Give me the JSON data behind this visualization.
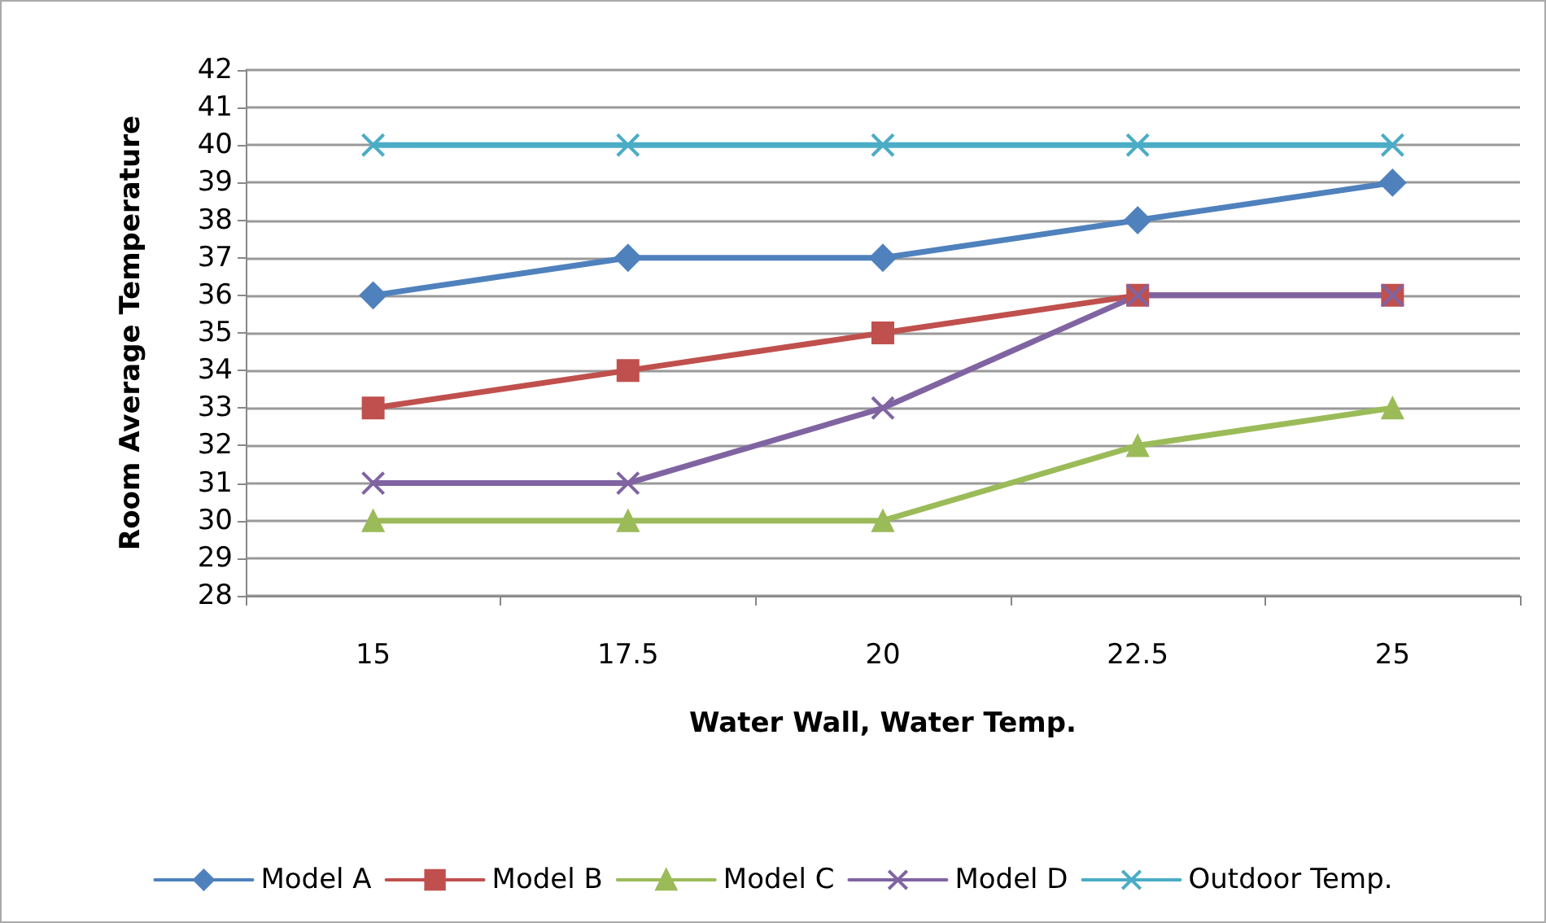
{
  "chart_data": {
    "type": "line",
    "xlabel": "Water Wall, Water Temp.",
    "ylabel": "Room Average Temperature",
    "categories": [
      "15",
      "17.5",
      "20",
      "22.5",
      "25"
    ],
    "series": [
      {
        "name": "Model A",
        "color": "#4f81bd",
        "marker": "diamond",
        "values": [
          36,
          37,
          37,
          38,
          39
        ]
      },
      {
        "name": "Model B",
        "color": "#c0504d",
        "marker": "square",
        "values": [
          33,
          34,
          35,
          36,
          36
        ]
      },
      {
        "name": "Model C",
        "color": "#9bbb59",
        "marker": "triangle",
        "values": [
          30,
          30,
          30,
          32,
          33
        ]
      },
      {
        "name": "Model D",
        "color": "#8064a2",
        "marker": "cross",
        "values": [
          31,
          31,
          33,
          36,
          36
        ]
      },
      {
        "name": "Outdoor Temp.",
        "color": "#4bacc6",
        "marker": "cross",
        "values": [
          40,
          40,
          40,
          40,
          40
        ]
      }
    ],
    "ylim": [
      28,
      42
    ],
    "yticks": [
      28,
      29,
      30,
      31,
      32,
      33,
      34,
      35,
      36,
      37,
      38,
      39,
      40,
      41,
      42
    ],
    "grid": "y",
    "legend": "bottom",
    "line_style": "solid"
  }
}
